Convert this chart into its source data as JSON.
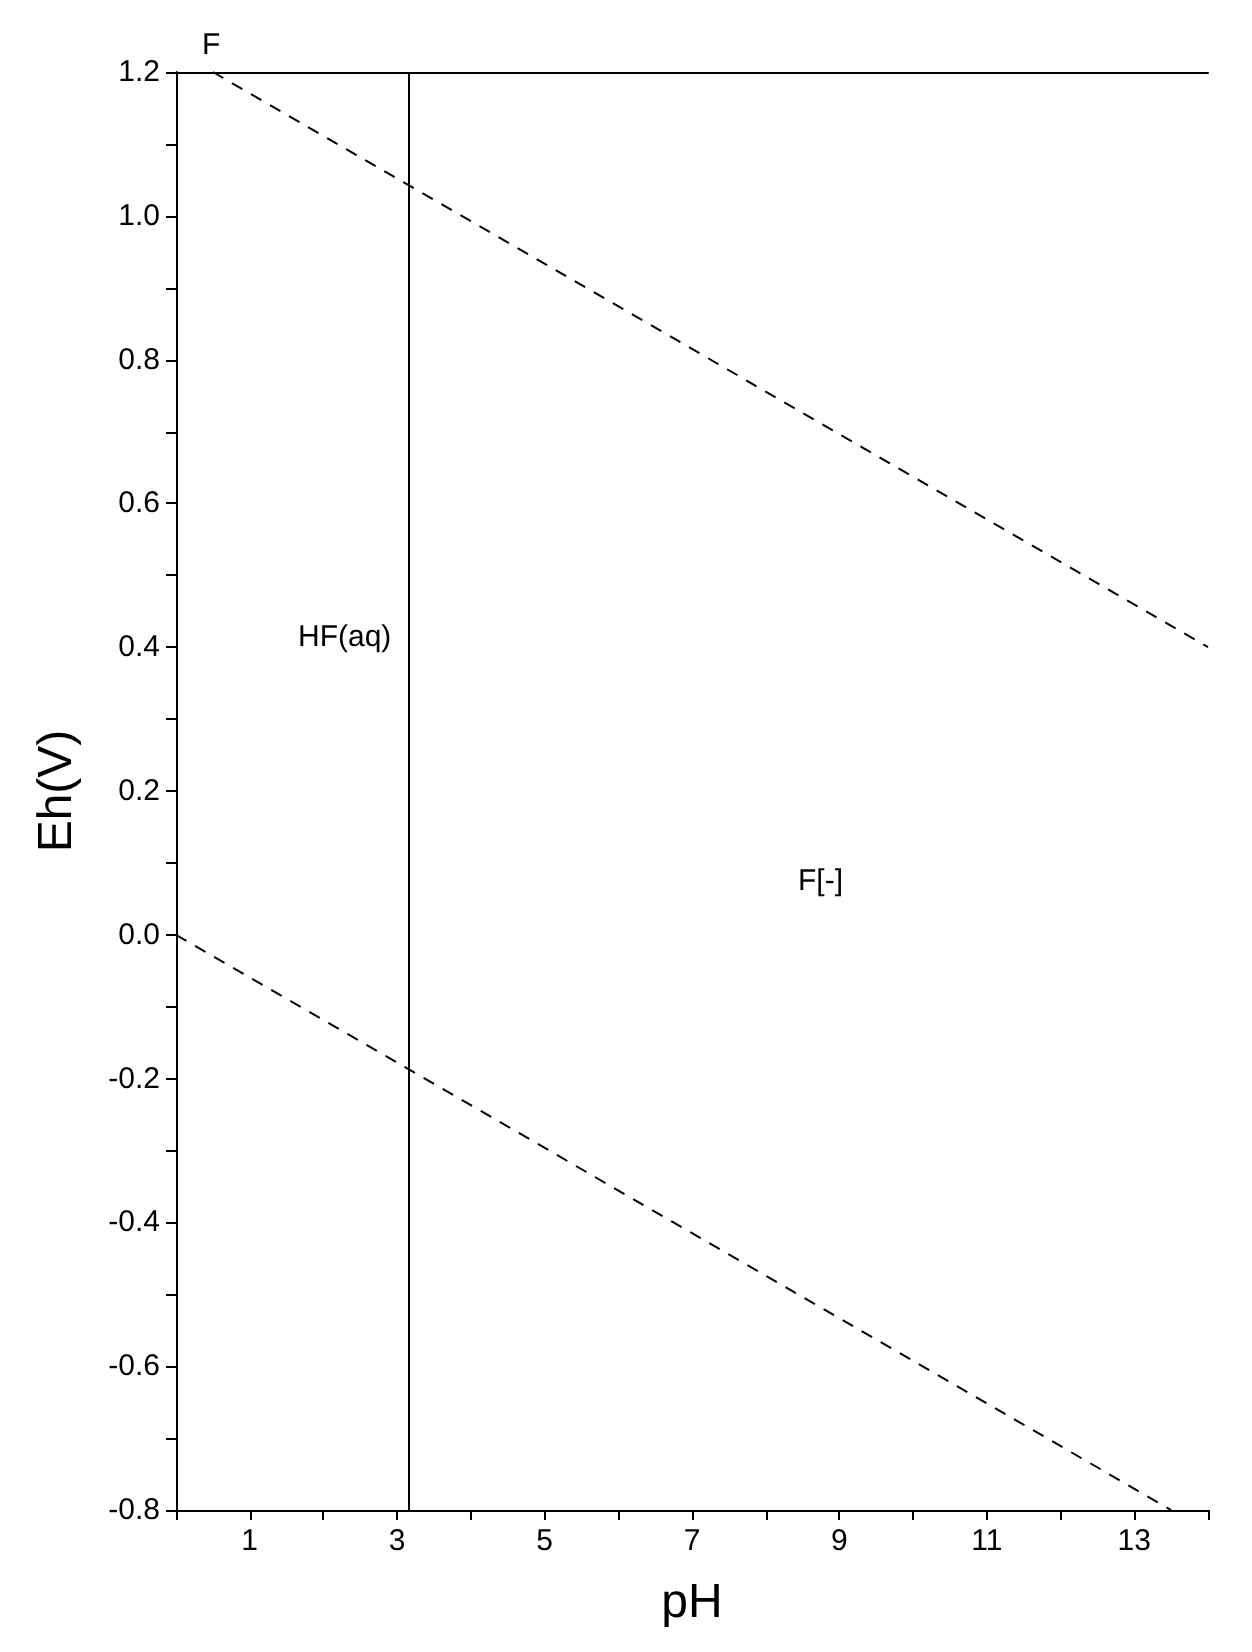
{
  "chart_data": {
    "type": "line",
    "title": "F",
    "xlabel": "pH",
    "ylabel": "Eh(V)",
    "xlim": [
      0,
      14
    ],
    "ylim": [
      -0.8,
      1.2
    ],
    "xticks": [
      {
        "value": 0,
        "label": null
      },
      1,
      {
        "value": 2,
        "label": null
      },
      3,
      {
        "value": 4,
        "label": null
      },
      5,
      {
        "value": 6,
        "label": null
      },
      7,
      {
        "value": 8,
        "label": null
      },
      9,
      {
        "value": 10,
        "label": null
      },
      11,
      {
        "value": 12,
        "label": null
      },
      13,
      {
        "value": 14,
        "label": null
      }
    ],
    "yticks": [
      {
        "value": -0.8,
        "label": "-0.8"
      },
      {
        "value": -0.7,
        "label": null
      },
      {
        "value": -0.6,
        "label": "-0.6"
      },
      {
        "value": -0.5,
        "label": null
      },
      {
        "value": -0.4,
        "label": "-0.4"
      },
      {
        "value": -0.3,
        "label": null
      },
      {
        "value": -0.2,
        "label": "-0.2"
      },
      {
        "value": -0.1,
        "label": null
      },
      {
        "value": 0,
        "label": "0.0"
      },
      {
        "value": 0.1,
        "label": null
      },
      {
        "value": 0.2,
        "label": "0.2"
      },
      {
        "value": 0.3,
        "label": null
      },
      {
        "value": 0.4,
        "label": "0.4"
      },
      {
        "value": 0.5,
        "label": null
      },
      {
        "value": 0.6,
        "label": "0.6"
      },
      {
        "value": 0.7,
        "label": null
      },
      {
        "value": 0.8,
        "label": "0.8"
      },
      {
        "value": 0.9,
        "label": null
      },
      {
        "value": 1,
        "label": "1.0"
      },
      {
        "value": 1.1,
        "label": null
      },
      {
        "value": 1.2,
        "label": "1.2"
      }
    ],
    "grid": false,
    "marker": "none",
    "line_style": "dashed",
    "series": [
      {
        "color": "#000000",
        "x": [
          0.5,
          14
        ],
        "values": [
          1.2,
          0.4
        ]
      },
      {
        "color": "#000000",
        "x": [
          0,
          13.5
        ],
        "values": [
          0,
          -0.8
        ]
      }
    ],
    "ref_lines": [
      {
        "axis": "x",
        "value": 3.15,
        "color": "#000000",
        "line_style": "solid"
      }
    ],
    "annotations": [
      "HF(aq)",
      "F[-]"
    ]
  }
}
